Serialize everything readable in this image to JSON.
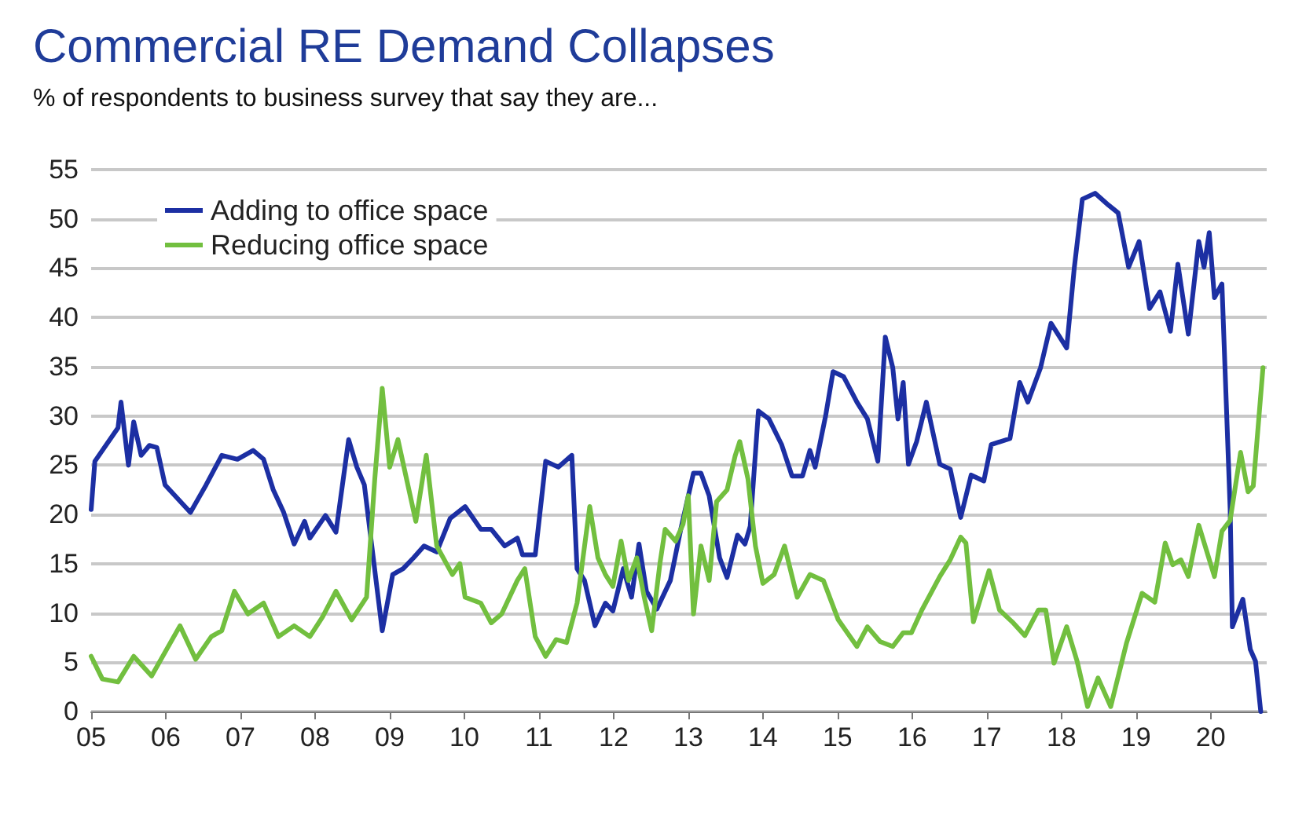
{
  "chart_data": {
    "type": "line",
    "title": "Commercial RE Demand Collapses",
    "subtitle": "% of respondents to business survey that say they are...",
    "series": [
      {
        "name": "Adding to office space",
        "color": "#1c2fa3",
        "x": [
          2005.0,
          2005.05,
          2005.36,
          2005.4,
          2005.5,
          2005.57,
          2005.67,
          2005.78,
          2005.88,
          2005.99,
          2006.16,
          2006.33,
          2006.54,
          2006.75,
          2006.96,
          2007.17,
          2007.31,
          2007.44,
          2007.58,
          2007.72,
          2007.86,
          2007.93,
          2008.14,
          2008.28,
          2008.45,
          2008.56,
          2008.66,
          2008.76,
          2008.9,
          2009.04,
          2009.18,
          2009.32,
          2009.46,
          2009.63,
          2009.81,
          2010.01,
          2010.22,
          2010.36,
          2010.54,
          2010.71,
          2010.78,
          2010.95,
          2011.09,
          2011.26,
          2011.44,
          2011.51,
          2011.61,
          2011.75,
          2011.89,
          2011.99,
          2012.13,
          2012.24,
          2012.34,
          2012.44,
          2012.58,
          2012.76,
          2012.9,
          2013.07,
          2013.17,
          2013.28,
          2013.42,
          2013.52,
          2013.66,
          2013.76,
          2013.83,
          2013.94,
          2014.08,
          2014.25,
          2014.39,
          2014.53,
          2014.63,
          2014.7,
          2014.84,
          2014.94,
          2015.08,
          2015.26,
          2015.4,
          2015.54,
          2015.64,
          2015.74,
          2015.81,
          2015.88,
          2015.95,
          2016.06,
          2016.19,
          2016.37,
          2016.51,
          2016.65,
          2016.79,
          2016.96,
          2017.06,
          2017.31,
          2017.44,
          2017.55,
          2017.72,
          2017.86,
          2018.07,
          2018.17,
          2018.28,
          2018.45,
          2018.63,
          2018.76,
          2018.9,
          2019.04,
          2019.18,
          2019.32,
          2019.46,
          2019.56,
          2019.7,
          2019.84,
          2019.91,
          2019.98,
          2020.05,
          2020.15,
          2020.26,
          2020.29,
          2020.43,
          2020.53,
          2020.6,
          2020.67
        ],
        "values": [
          20.5,
          25.4,
          28.8,
          31.4,
          25,
          29.4,
          26,
          27,
          26.8,
          23,
          21.6,
          20.2,
          23,
          26,
          25.6,
          26.5,
          25.6,
          22.5,
          20.2,
          17,
          19.3,
          17.6,
          19.9,
          18.2,
          27.6,
          24.8,
          23,
          16.8,
          8.2,
          13.9,
          14.5,
          15.6,
          16.8,
          16.2,
          19.6,
          20.8,
          18.5,
          18.5,
          16.8,
          17.6,
          15.9,
          15.9,
          25.4,
          24.8,
          26,
          14.5,
          13.3,
          8.7,
          11,
          10.2,
          14.5,
          11.6,
          17,
          12.2,
          10.4,
          13.3,
          18.5,
          24.2,
          24.2,
          21.9,
          15.6,
          13.6,
          17.9,
          17,
          18.8,
          30.5,
          29.7,
          27.1,
          23.9,
          23.9,
          26.5,
          24.8,
          30,
          34.5,
          34,
          31.4,
          29.7,
          25.4,
          38,
          34.9,
          29.7,
          33.4,
          25.1,
          27.4,
          31.4,
          25.1,
          24.6,
          19.7,
          24,
          23.4,
          27.1,
          27.7,
          33.4,
          31.4,
          34.9,
          39.4,
          36.9,
          44.9,
          52,
          52.6,
          51.4,
          50.6,
          45.1,
          47.7,
          40.9,
          42.6,
          38.6,
          45.4,
          38.3,
          47.7,
          45.1,
          48.6,
          42,
          43.4,
          20.6,
          8.6,
          11.4,
          6.3,
          5.1,
          0
        ]
      },
      {
        "name": "Reducing office space",
        "color": "#72bf3f",
        "x": [
          2005.0,
          2005.15,
          2005.36,
          2005.57,
          2005.81,
          2006.19,
          2006.4,
          2006.61,
          2006.75,
          2006.92,
          2007.1,
          2007.31,
          2007.51,
          2007.72,
          2007.93,
          2008.1,
          2008.28,
          2008.49,
          2008.69,
          2008.8,
          2008.9,
          2009.0,
          2009.11,
          2009.35,
          2009.49,
          2009.63,
          2009.84,
          2009.94,
          2010.01,
          2010.22,
          2010.36,
          2010.5,
          2010.71,
          2010.81,
          2010.95,
          2011.09,
          2011.23,
          2011.37,
          2011.51,
          2011.68,
          2011.79,
          2011.89,
          2011.99,
          2012.1,
          2012.2,
          2012.31,
          2012.41,
          2012.51,
          2012.62,
          2012.69,
          2012.83,
          2012.93,
          2013.0,
          2013.07,
          2013.17,
          2013.28,
          2013.38,
          2013.52,
          2013.63,
          2013.69,
          2013.8,
          2013.9,
          2014.0,
          2014.15,
          2014.29,
          2014.46,
          2014.63,
          2014.81,
          2015.01,
          2015.26,
          2015.4,
          2015.57,
          2015.74,
          2015.88,
          2015.99,
          2016.13,
          2016.37,
          2016.51,
          2016.65,
          2016.72,
          2016.82,
          2017.03,
          2017.17,
          2017.34,
          2017.51,
          2017.69,
          2017.79,
          2017.9,
          2018.07,
          2018.21,
          2018.35,
          2018.49,
          2018.66,
          2018.87,
          2019.08,
          2019.25,
          2019.39,
          2019.49,
          2019.6,
          2019.7,
          2019.84,
          2020.05,
          2020.15,
          2020.26,
          2020.4,
          2020.5,
          2020.57,
          2020.7
        ],
        "values": [
          5.6,
          3.3,
          3,
          5.6,
          3.6,
          8.7,
          5.3,
          7.6,
          8.2,
          12.2,
          9.9,
          11,
          7.6,
          8.7,
          7.6,
          9.6,
          12.2,
          9.3,
          11.6,
          23.6,
          32.8,
          24.8,
          27.6,
          19.3,
          26,
          16.8,
          13.9,
          15,
          11.6,
          11,
          9,
          9.9,
          13.3,
          14.5,
          7.6,
          5.6,
          7.3,
          7,
          11,
          20.8,
          15.6,
          13.9,
          12.7,
          17.3,
          13.3,
          15.6,
          11.6,
          8.2,
          15,
          18.5,
          17.3,
          19,
          21.9,
          9.9,
          16.8,
          13.3,
          21.3,
          22.5,
          26,
          27.4,
          23.6,
          16.8,
          13,
          13.9,
          16.8,
          11.6,
          13.9,
          13.3,
          9.3,
          6.6,
          8.6,
          7.1,
          6.6,
          8,
          8,
          10.3,
          13.7,
          15.4,
          17.7,
          17.1,
          9.1,
          14.3,
          10.3,
          9.1,
          7.7,
          10.3,
          10.3,
          4.9,
          8.6,
          5.1,
          0.5,
          3.4,
          0.5,
          6.9,
          12,
          11.1,
          17.1,
          14.9,
          15.4,
          13.7,
          18.9,
          13.7,
          18.3,
          19.4,
          26.3,
          22.3,
          22.9,
          34.9
        ]
      }
    ],
    "xlim": [
      2005,
      2020.75
    ],
    "xticks": [
      {
        "value": 2005,
        "label": "05"
      },
      {
        "value": 2006,
        "label": "06"
      },
      {
        "value": 2007,
        "label": "07"
      },
      {
        "value": 2008,
        "label": "08"
      },
      {
        "value": 2009,
        "label": "09"
      },
      {
        "value": 2010,
        "label": "10"
      },
      {
        "value": 2011,
        "label": "11"
      },
      {
        "value": 2012,
        "label": "12"
      },
      {
        "value": 2013,
        "label": "13"
      },
      {
        "value": 2014,
        "label": "14"
      },
      {
        "value": 2015,
        "label": "15"
      },
      {
        "value": 2016,
        "label": "16"
      },
      {
        "value": 2017,
        "label": "17"
      },
      {
        "value": 2018,
        "label": "18"
      },
      {
        "value": 2019,
        "label": "19"
      },
      {
        "value": 2020,
        "label": "20"
      }
    ],
    "ylim": [
      0,
      55
    ],
    "yticks": [
      0,
      5,
      10,
      15,
      20,
      25,
      30,
      35,
      40,
      45,
      50,
      55
    ],
    "grid": "y",
    "legend": "top left",
    "marker": "none",
    "line_style": "solid"
  }
}
